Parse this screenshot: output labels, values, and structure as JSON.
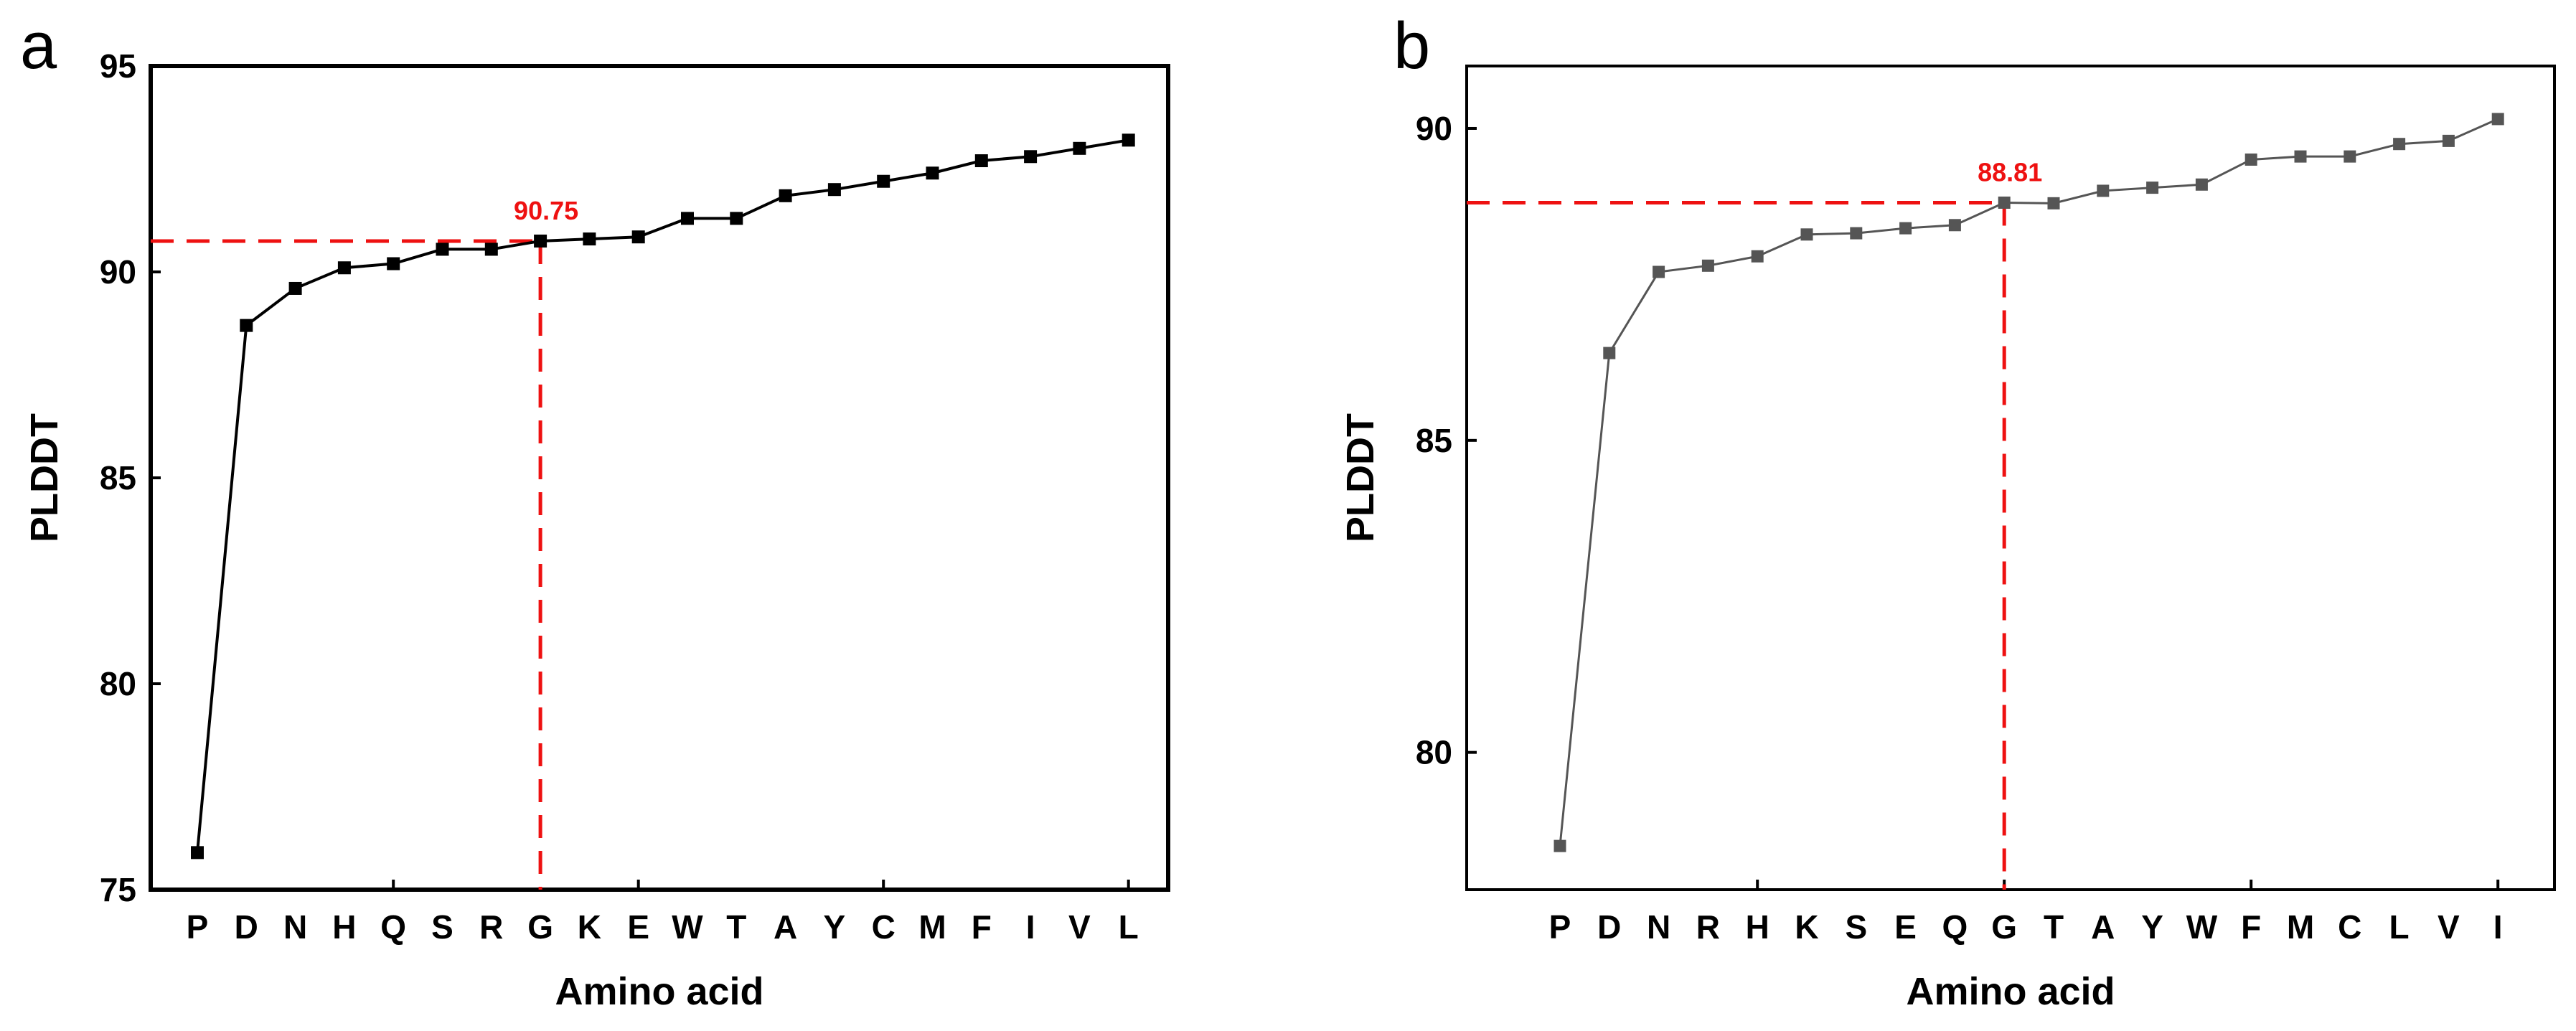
{
  "chart_data": [
    {
      "panel": "a",
      "type": "line",
      "marker": "square",
      "xlabel": "Amino acid",
      "ylabel": "PLDDT",
      "categories": [
        "P",
        "D",
        "N",
        "H",
        "Q",
        "S",
        "R",
        "G",
        "K",
        "E",
        "W",
        "T",
        "A",
        "Y",
        "C",
        "M",
        "F",
        "I",
        "V",
        "L"
      ],
      "values": [
        75.9,
        88.7,
        89.6,
        90.1,
        90.2,
        90.55,
        90.55,
        90.75,
        90.8,
        90.85,
        91.3,
        91.3,
        91.85,
        92.0,
        92.2,
        92.4,
        92.7,
        92.8,
        93.0,
        93.2
      ],
      "ylim": [
        75,
        95
      ],
      "yticks": [
        75,
        80,
        85,
        90,
        95
      ],
      "tick_categories": [
        "Q",
        "E",
        "C",
        "L"
      ],
      "line_color": "#000000",
      "marker_color": "#000000",
      "annotation": {
        "category": "G",
        "value": 90.75,
        "label": "90.75",
        "color": "#ee1111"
      }
    },
    {
      "panel": "b",
      "type": "line",
      "marker": "square",
      "xlabel": "Amino acid",
      "ylabel": "PLDDT",
      "categories": [
        "P",
        "D",
        "N",
        "R",
        "H",
        "K",
        "S",
        "E",
        "Q",
        "G",
        "T",
        "A",
        "Y",
        "W",
        "F",
        "M",
        "C",
        "L",
        "V",
        "I"
      ],
      "values": [
        78.5,
        86.4,
        87.7,
        87.8,
        87.95,
        88.3,
        88.32,
        88.4,
        88.45,
        88.81,
        88.8,
        89.0,
        89.05,
        89.1,
        89.5,
        89.55,
        89.55,
        89.75,
        89.8,
        90.15
      ],
      "ylim": [
        77.8,
        91
      ],
      "yticks": [
        80,
        85,
        90
      ],
      "tick_categories": [
        "H",
        "G",
        "F",
        "I"
      ],
      "line_color": "#555555",
      "marker_color": "#555555",
      "annotation": {
        "category": "G",
        "value": 88.81,
        "label": "88.81",
        "color": "#ee1111"
      }
    }
  ]
}
